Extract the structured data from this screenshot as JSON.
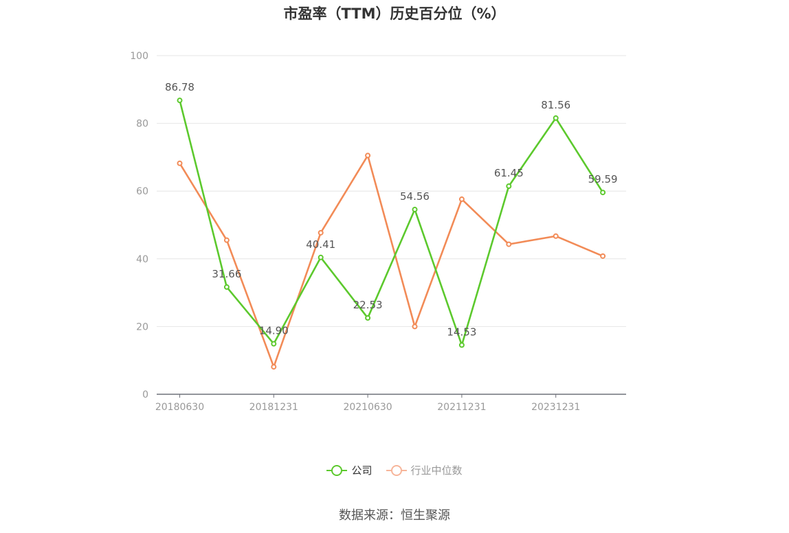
{
  "title": "市盈率（TTM）历史百分位（%）",
  "source": "数据来源：恒生聚源",
  "chart_data": {
    "type": "line",
    "title": "市盈率（TTM）历史百分位（%）",
    "x": [
      "20180630",
      "",
      "20181231",
      "",
      "20210630",
      "",
      "20211231",
      "",
      "20231231",
      ""
    ],
    "x_tick_labels": [
      "20180630",
      "20181231",
      "20210630",
      "20211231",
      "20231231"
    ],
    "ylim": [
      0,
      100
    ],
    "y_ticks": [
      "0",
      "20",
      "40",
      "60",
      "80",
      "100"
    ],
    "grid": true,
    "legend": "bottom",
    "series": [
      {
        "name": "公司",
        "color": "#5cc92d",
        "values": [
          86.78,
          31.66,
          14.9,
          40.41,
          22.53,
          54.56,
          14.53,
          61.45,
          81.56,
          59.59
        ],
        "labels": [
          "86.78",
          "31.66",
          "14.90",
          "40.41",
          "22.53",
          "54.56",
          "14.53",
          "61.45",
          "81.56",
          "59.59"
        ]
      },
      {
        "name": "行业中位数",
        "color": "#f28b57",
        "values": [
          68.2,
          45.5,
          8.1,
          47.7,
          70.5,
          20.0,
          57.6,
          44.3,
          46.7,
          40.8
        ]
      }
    ]
  },
  "legend": {
    "company": "公司",
    "industry": "行业中位数",
    "company_color": "#5cc92d",
    "industry_color": "#f7b59a"
  }
}
